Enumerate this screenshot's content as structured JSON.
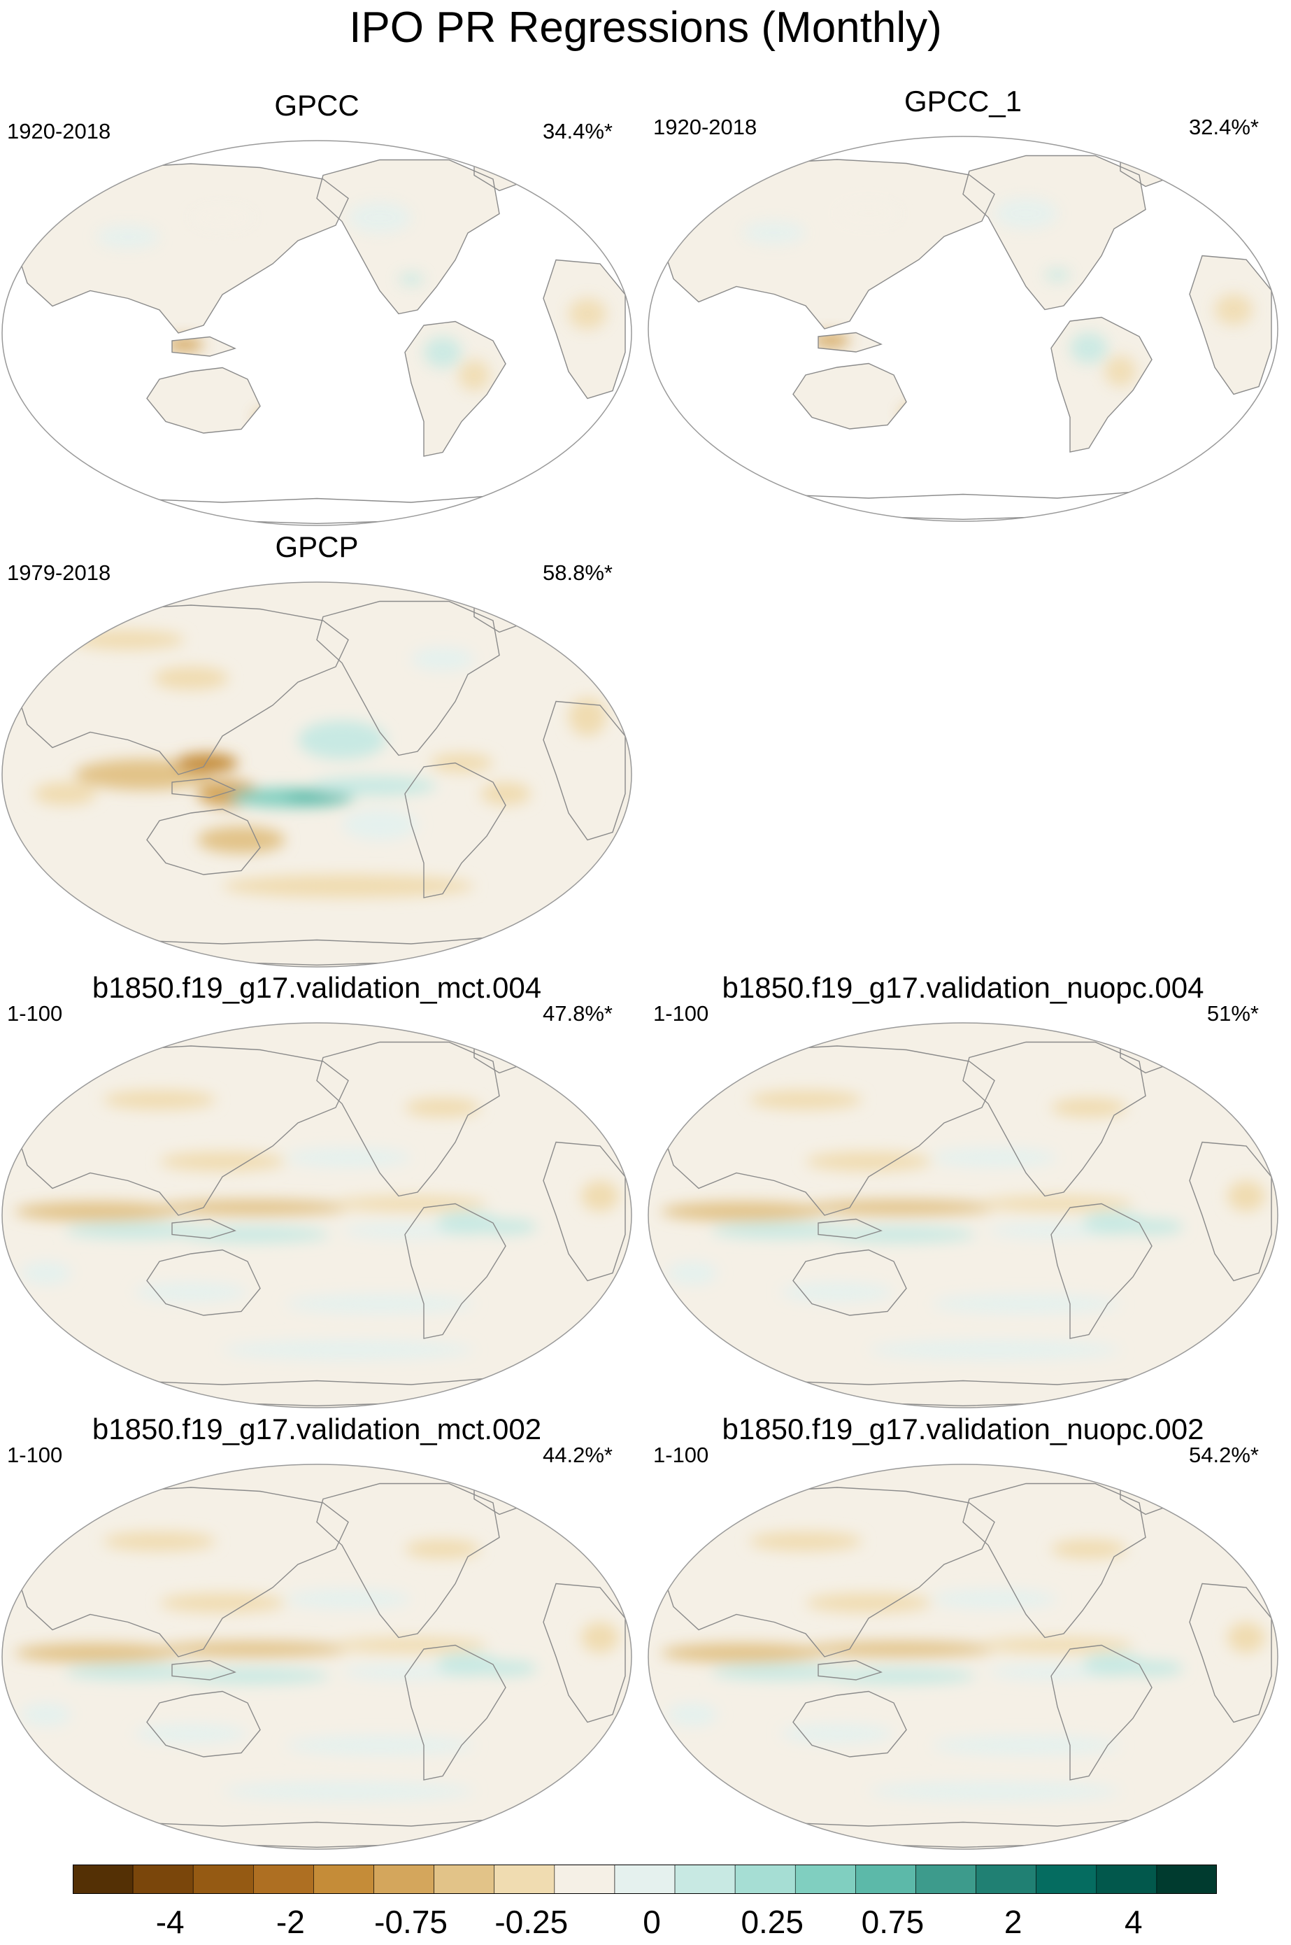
{
  "figure": {
    "title": "IPO PR Regressions (Monthly)"
  },
  "colors": {
    "land_line": "#8a8a8a",
    "outline": "#999999",
    "palette": [
      "#543005",
      "#7a460b",
      "#955a13",
      "#ae6f22",
      "#c58c38",
      "#d4a65c",
      "#e2c388",
      "#f0dcb1",
      "#f5f0e6",
      "#e5f1ee",
      "#c8e9e3",
      "#a6ded4",
      "#80cfc0",
      "#5cb9a9",
      "#3d9b8c",
      "#208073",
      "#056c60",
      "#02584c",
      "#003b2f"
    ]
  },
  "colorbar": {
    "labels": [
      "-4",
      "-2",
      "-0.75",
      "-0.25",
      "0",
      "0.25",
      "0.75",
      "2",
      "4"
    ]
  },
  "panels": [
    {
      "title": "GPCC",
      "period": "1920-2018",
      "variance": "34.4%*",
      "pattern": "sparse",
      "land_only": true
    },
    {
      "title": "GPCC_1",
      "period": "1920-2018",
      "variance": "32.4%*",
      "pattern": "sparse",
      "land_only": true
    },
    {
      "title": "GPCP",
      "period": "1979-2018",
      "variance": "58.8%*",
      "pattern": "obs",
      "land_only": false
    },
    {
      "title": "b1850.f19_g17.validation_mct.004",
      "period": "1-100",
      "variance": "47.8%*",
      "pattern": "model",
      "land_only": false
    },
    {
      "title": "b1850.f19_g17.validation_nuopc.004",
      "period": "1-100",
      "variance": "51%*",
      "pattern": "model",
      "land_only": false
    },
    {
      "title": "b1850.f19_g17.validation_mct.002",
      "period": "1-100",
      "variance": "44.2%*",
      "pattern": "model",
      "land_only": false
    },
    {
      "title": "b1850.f19_g17.validation_nuopc.002",
      "period": "1-100",
      "variance": "54.2%*",
      "pattern": "model",
      "land_only": false
    }
  ]
}
